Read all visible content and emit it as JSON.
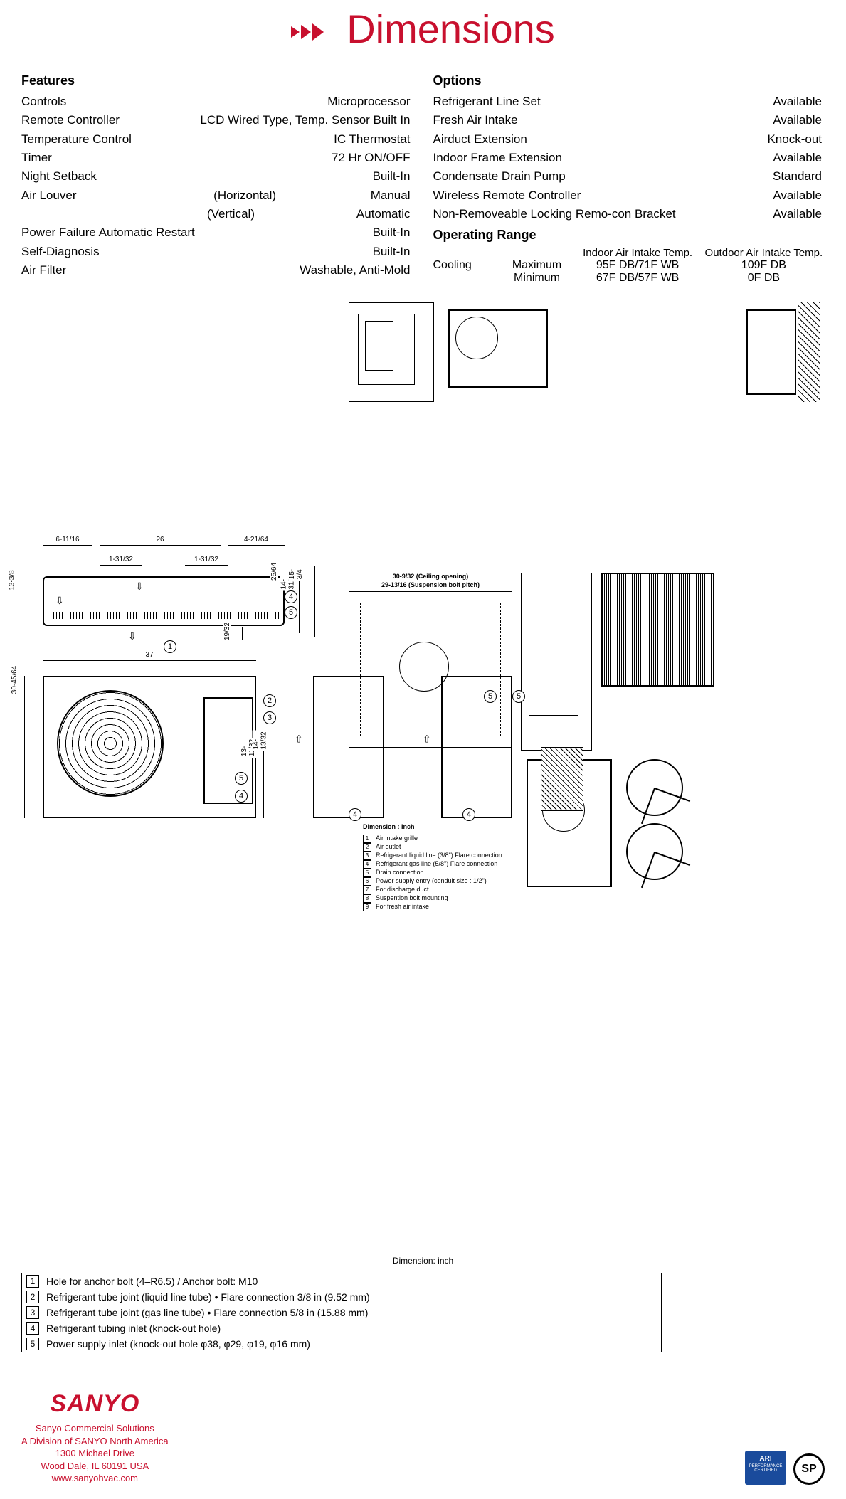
{
  "title": "Dimensions",
  "title_color": "#c8102e",
  "features": {
    "header": "Features",
    "rows": [
      {
        "label": "Controls",
        "value": "Microprocessor"
      },
      {
        "label": "Remote Controller",
        "value": "LCD Wired Type, Temp. Sensor Built In"
      },
      {
        "label": "Temperature Control",
        "value": "IC Thermostat"
      },
      {
        "label": "Timer",
        "value": "72 Hr ON/OFF"
      },
      {
        "label": "Night Setback",
        "value": "Built-In"
      }
    ],
    "air_louver": {
      "label": "Air Louver",
      "h_label": "(Horizontal)",
      "h_value": "Manual",
      "v_label": "(Vertical)",
      "v_value": "Automatic"
    },
    "rows2": [
      {
        "label": "Power Failure Automatic Restart",
        "value": "Built-In"
      },
      {
        "label": "Self-Diagnosis",
        "value": "Built-In"
      },
      {
        "label": "Air Filter",
        "value": "Washable, Anti-Mold"
      }
    ]
  },
  "options": {
    "header": "Options",
    "rows": [
      {
        "label": "Refrigerant Line Set",
        "value": "Available"
      },
      {
        "label": "Fresh Air Intake",
        "value": "Available"
      },
      {
        "label": "Airduct Extension",
        "value": "Knock-out"
      },
      {
        "label": "Indoor Frame Extension",
        "value": "Available"
      },
      {
        "label": "Condensate Drain Pump",
        "value": "Standard"
      },
      {
        "label": "Wireless Remote Controller",
        "value": "Available"
      },
      {
        "label": "Non-Removeable Locking Remo-con Bracket",
        "value": "Available"
      }
    ]
  },
  "operating_range": {
    "header": "Operating Range",
    "col1": "Indoor Air Intake Temp.",
    "col2": "Outdoor Air Intake Temp.",
    "mode": "Cooling",
    "rows": [
      {
        "cond": "Maximum",
        "c1": "95F DB/71F WB",
        "c2": "109F DB"
      },
      {
        "cond": "Minimum",
        "c1": "67F DB/57F WB",
        "c2": "0F DB"
      }
    ]
  },
  "indoor_dims": {
    "d1": "6-11/16",
    "d2": "26",
    "d3": "4-21/64",
    "d4": "1-31/32",
    "d5": "1-31/32",
    "h1": "13-3/8",
    "h2": "14-31/32",
    "h3": "25/64",
    "h4": "15-3/4",
    "h5": "19/32"
  },
  "outdoor_dims": {
    "w": "37",
    "h": "30-45/64",
    "h2": "13-11/32",
    "h3": "14-13/32"
  },
  "callouts": {
    "n1": "1",
    "n2": "2",
    "n3": "3",
    "n4": "4",
    "n5": "5"
  },
  "mid_label": "Dimension: inch",
  "tiny_legend": {
    "title": "Dimension : inch",
    "items": [
      {
        "n": "1",
        "t": "Air intake grille"
      },
      {
        "n": "2",
        "t": "Air outlet"
      },
      {
        "n": "3",
        "t": "Refrigerant liquid line (3/8\") Flare connection"
      },
      {
        "n": "4",
        "t": "Refrigerant gas line (5/8\") Flare connection"
      },
      {
        "n": "5",
        "t": "Drain connection"
      },
      {
        "n": "6",
        "t": "Power supply entry (conduit size : 1/2\")"
      },
      {
        "n": "7",
        "t": "For discharge duct"
      },
      {
        "n": "8",
        "t": "Suspention bolt mounting"
      },
      {
        "n": "9",
        "t": "For fresh air intake"
      }
    ]
  },
  "callout_list": [
    {
      "n": "1",
      "t": "Hole for anchor bolt (4–R6.5) / Anchor bolt: M10"
    },
    {
      "n": "2",
      "t": "Refrigerant tube joint (liquid line tube) • Flare connection 3/8 in (9.52 mm)"
    },
    {
      "n": "3",
      "t": "Refrigerant tube joint (gas line tube) • Flare connection 5/8 in (15.88 mm)"
    },
    {
      "n": "4",
      "t": "Refrigerant tubing inlet (knock-out hole)"
    },
    {
      "n": "5",
      "t": "Power supply inlet (knock-out hole φ38, φ29, φ19, φ16 mm)"
    }
  ],
  "footer": {
    "logo": "SANYO",
    "l1": "Sanyo Commercial Solutions",
    "l2": "A Division of SANYO North America",
    "l3": "1300 Michael Drive",
    "l4": "Wood Dale, IL 60191 USA",
    "l5": "www.sanyohvac.com",
    "ari": "ARI",
    "ari_sub": "PERFORMANCE CERTIFIED",
    "csa": "SP"
  },
  "plan_dims": {
    "a": "30-9/32 (Ceiling opening)",
    "b": "29-13/16 (Suspension bolt pitch)"
  }
}
